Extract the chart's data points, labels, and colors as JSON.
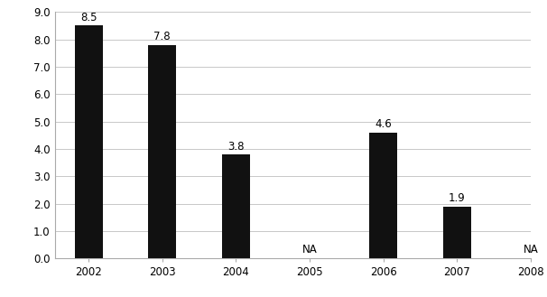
{
  "categories": [
    "2002",
    "2003",
    "2004",
    "2005",
    "2006",
    "2007",
    "2008"
  ],
  "values": [
    8.5,
    7.8,
    3.8,
    null,
    4.6,
    1.9,
    null
  ],
  "bar_color": "#111111",
  "labels": [
    "8.5",
    "7.8",
    "3.8",
    "NA",
    "4.6",
    "1.9",
    "NA"
  ],
  "ylim": [
    0.0,
    9.0
  ],
  "yticks": [
    0.0,
    1.0,
    2.0,
    3.0,
    4.0,
    5.0,
    6.0,
    7.0,
    8.0,
    9.0
  ],
  "background_color": "#ffffff",
  "grid_color": "#c8c8c8",
  "label_fontsize": 8.5,
  "tick_fontsize": 8.5,
  "bar_width": 0.38,
  "figsize": [
    6.06,
    3.29
  ],
  "dpi": 100
}
